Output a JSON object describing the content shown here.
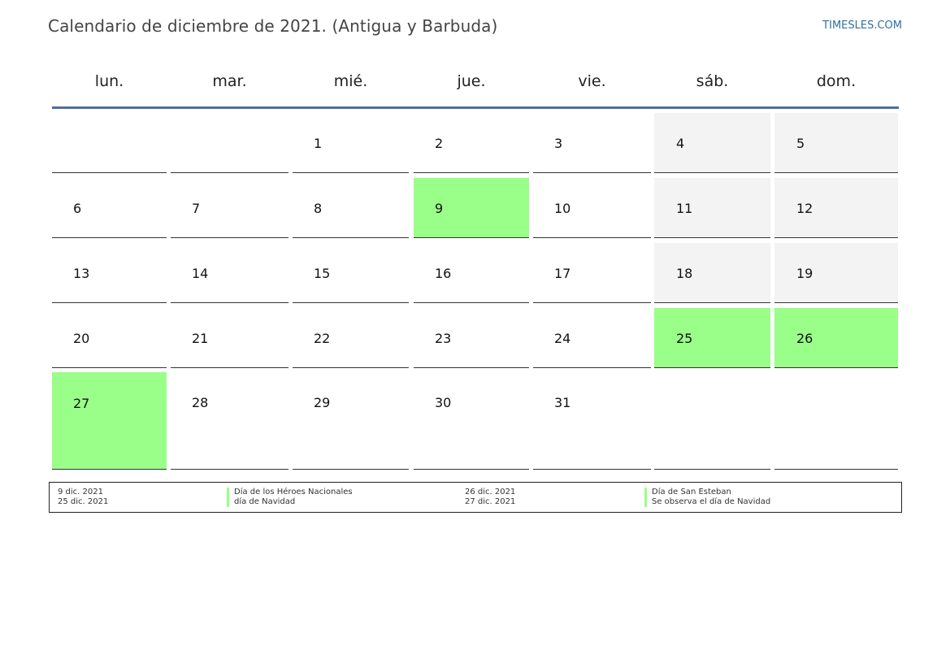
{
  "header": {
    "title": "Calendario de diciembre de 2021. (Antigua y Barbuda)",
    "site": "TIMESLES.COM"
  },
  "weekdays": [
    "lun.",
    "mar.",
    "mié.",
    "jue.",
    "vie.",
    "sáb.",
    "dom."
  ],
  "weeks": [
    [
      "",
      "",
      "1",
      "2",
      "3",
      "4",
      "5"
    ],
    [
      "6",
      "7",
      "8",
      "9",
      "10",
      "11",
      "12"
    ],
    [
      "13",
      "14",
      "15",
      "16",
      "17",
      "18",
      "19"
    ],
    [
      "20",
      "21",
      "22",
      "23",
      "24",
      "25",
      "26"
    ],
    [
      "27",
      "28",
      "29",
      "30",
      "31",
      "",
      ""
    ]
  ],
  "holiday_days": [
    "9",
    "25",
    "26",
    "27"
  ],
  "colors": {
    "holiday": "#99ff88",
    "weekend": "#f3f3f3",
    "header_rule": "#4f6f96",
    "site_link": "#2f6fa8"
  },
  "legend": [
    {
      "date": "9 dic. 2021",
      "name": "Día de los Héroes Nacionales"
    },
    {
      "date": "25 dic. 2021",
      "name": "día de Navidad"
    },
    {
      "date": "26 dic. 2021",
      "name": "Día de San Esteban"
    },
    {
      "date": "27 dic. 2021",
      "name": "Se observa el día de Navidad"
    }
  ]
}
